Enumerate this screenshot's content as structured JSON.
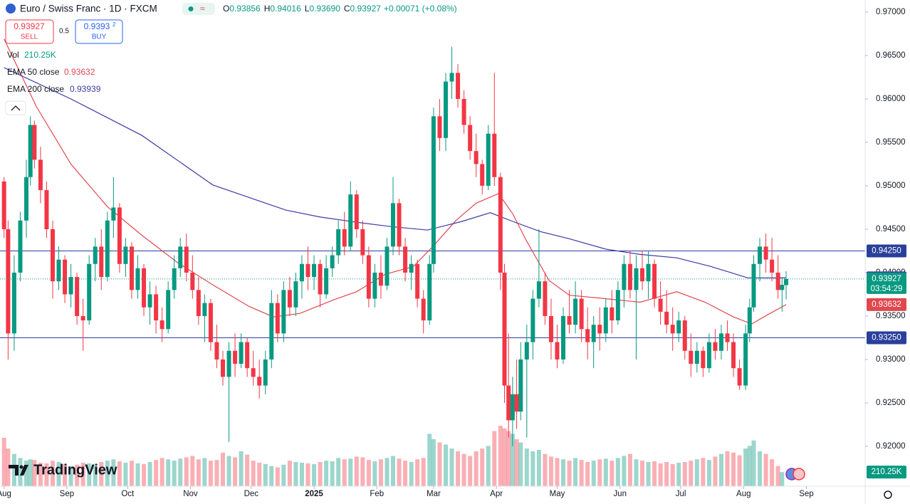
{
  "header": {
    "symbol": "Euro / Swiss Franc · 1D · FXCM",
    "badge": "≈",
    "ohlc": [
      {
        "label": "O",
        "value": "0.93856"
      },
      {
        "label": "H",
        "value": "0.94016"
      },
      {
        "label": "L",
        "value": "0.93690"
      },
      {
        "label": "C",
        "value": "0.93927"
      }
    ],
    "change": "+0.00071 (+0.08%)",
    "sell": {
      "price": "0.93927",
      "label": "SELL"
    },
    "spread": "0.5",
    "buy": {
      "price": "0.9393",
      "sup": "2",
      "label": "BUY"
    }
  },
  "watermark": "TradingView",
  "chart_data": {
    "type": "candlestick",
    "up_color": "#089981",
    "down_color": "#f23645",
    "countdown": "03:54:29",
    "xlim": [
      -2,
      425
    ],
    "ylim": [
      0.91541,
      0.97139
    ],
    "xticks": [
      {
        "value": 0,
        "label": "Aug"
      },
      {
        "value": 31,
        "label": "Sep"
      },
      {
        "value": 61,
        "label": "Oct"
      },
      {
        "value": 92,
        "label": "Nov"
      },
      {
        "value": 122,
        "label": "Dec"
      },
      {
        "value": 153,
        "label": "2025"
      },
      {
        "value": 184,
        "label": "Feb"
      },
      {
        "value": 212,
        "label": "Mar"
      },
      {
        "value": 243,
        "label": "Apr"
      },
      {
        "value": 273,
        "label": "May"
      },
      {
        "value": 304,
        "label": "Jun"
      },
      {
        "value": 334,
        "label": "Jul"
      },
      {
        "value": 365,
        "label": "Aug"
      },
      {
        "value": 396,
        "label": "Sep"
      }
    ],
    "yticks": [
      {
        "value": 0.92,
        "label": "0.92000"
      },
      {
        "value": 0.925,
        "label": "0.92500"
      },
      {
        "value": 0.93,
        "label": "0.93000"
      },
      {
        "value": 0.935,
        "label": "0.93500"
      },
      {
        "value": 0.94,
        "label": "0.94000"
      },
      {
        "value": 0.945,
        "label": "0.94500"
      },
      {
        "value": 0.95,
        "label": "0.95000"
      },
      {
        "value": 0.955,
        "label": "0.95500"
      },
      {
        "value": 0.96,
        "label": "0.96000"
      },
      {
        "value": 0.965,
        "label": "0.96500"
      },
      {
        "value": 0.97,
        "label": "0.97000"
      }
    ],
    "hlines": [
      {
        "value": 0.9425,
        "label": "0.94250",
        "color": "#2a3f9c"
      },
      {
        "value": 0.9325,
        "label": "0.93250",
        "color": "#2a3f9c"
      }
    ],
    "x": [
      0,
      2,
      5,
      8,
      11,
      13,
      15,
      18,
      21,
      24,
      27,
      30,
      33,
      36,
      39,
      42,
      45,
      48,
      51,
      54,
      57,
      60,
      63,
      66,
      69,
      72,
      75,
      78,
      81,
      84,
      87,
      90,
      93,
      96,
      99,
      102,
      105,
      108,
      111,
      114,
      117,
      120,
      123,
      126,
      129,
      132,
      135,
      138,
      141,
      144,
      147,
      150,
      153,
      156,
      159,
      162,
      165,
      168,
      171,
      174,
      177,
      180,
      183,
      186,
      189,
      192,
      195,
      198,
      201,
      204,
      207,
      210,
      212,
      215,
      218,
      221,
      224,
      227,
      230,
      233,
      236,
      239,
      242,
      245,
      247,
      249,
      251,
      253,
      255,
      258,
      261,
      264,
      267,
      270,
      273,
      276,
      279,
      282,
      285,
      288,
      291,
      294,
      297,
      300,
      303,
      306,
      309,
      312,
      315,
      318,
      321,
      324,
      327,
      330,
      333,
      336,
      339,
      342,
      345,
      348,
      351,
      354,
      357,
      360,
      363,
      366,
      368,
      370,
      373,
      376,
      379,
      382,
      384,
      386
    ],
    "open": [
      0.9505,
      0.945,
      0.933,
      0.94,
      0.946,
      0.951,
      0.957,
      0.953,
      0.9495,
      0.945,
      0.939,
      0.9415,
      0.9375,
      0.9395,
      0.935,
      0.9345,
      0.941,
      0.943,
      0.9395,
      0.946,
      0.9475,
      0.941,
      0.943,
      0.938,
      0.9405,
      0.936,
      0.9375,
      0.9345,
      0.9335,
      0.938,
      0.9405,
      0.943,
      0.94,
      0.938,
      0.935,
      0.9365,
      0.932,
      0.93,
      0.928,
      0.931,
      0.9295,
      0.932,
      0.929,
      0.928,
      0.927,
      0.93,
      0.9365,
      0.933,
      0.938,
      0.936,
      0.939,
      0.941,
      0.9395,
      0.941,
      0.9375,
      0.9405,
      0.942,
      0.945,
      0.943,
      0.949,
      0.945,
      0.942,
      0.937,
      0.94,
      0.9385,
      0.943,
      0.948,
      0.943,
      0.94,
      0.941,
      0.937,
      0.9345,
      0.941,
      0.958,
      0.9555,
      0.962,
      0.963,
      0.96,
      0.957,
      0.954,
      0.9525,
      0.95,
      0.956,
      0.951,
      0.94,
      0.927,
      0.923,
      0.926,
      0.924,
      0.93,
      0.932,
      0.937,
      0.939,
      0.935,
      0.932,
      0.93,
      0.935,
      0.934,
      0.937,
      0.9335,
      0.932,
      0.934,
      0.933,
      0.936,
      0.9345,
      0.938,
      0.941,
      0.938,
      0.9405,
      0.939,
      0.941,
      0.937,
      0.9355,
      0.934,
      0.933,
      0.9345,
      0.931,
      0.9295,
      0.931,
      0.929,
      0.932,
      0.931,
      0.933,
      0.932,
      0.929,
      0.927,
      0.933,
      0.936,
      0.941,
      0.943,
      0.9415,
      0.94,
      0.938,
      0.93856
    ],
    "high": [
      0.951,
      0.946,
      0.942,
      0.947,
      0.953,
      0.958,
      0.9575,
      0.9545,
      0.9505,
      0.946,
      0.943,
      0.942,
      0.941,
      0.94,
      0.937,
      0.942,
      0.944,
      0.945,
      0.947,
      0.951,
      0.948,
      0.944,
      0.9435,
      0.942,
      0.941,
      0.939,
      0.9385,
      0.936,
      0.939,
      0.942,
      0.944,
      0.9445,
      0.942,
      0.9395,
      0.9375,
      0.937,
      0.934,
      0.931,
      0.932,
      0.933,
      0.933,
      0.9325,
      0.931,
      0.93,
      0.931,
      0.938,
      0.9375,
      0.939,
      0.9395,
      0.94,
      0.942,
      0.943,
      0.942,
      0.9415,
      0.942,
      0.943,
      0.946,
      0.947,
      0.9505,
      0.9495,
      0.946,
      0.943,
      0.941,
      0.942,
      0.944,
      0.951,
      0.9485,
      0.944,
      0.942,
      0.9415,
      0.938,
      0.942,
      0.959,
      0.96,
      0.963,
      0.966,
      0.964,
      0.961,
      0.958,
      0.956,
      0.953,
      0.957,
      0.963,
      0.9515,
      0.941,
      0.933,
      0.928,
      0.93,
      0.932,
      0.934,
      0.938,
      0.945,
      0.94,
      0.937,
      0.934,
      0.936,
      0.938,
      0.939,
      0.938,
      0.936,
      0.935,
      0.936,
      0.937,
      0.938,
      0.939,
      0.942,
      0.9425,
      0.942,
      0.9425,
      0.9425,
      0.9415,
      0.939,
      0.938,
      0.936,
      0.9355,
      0.935,
      0.933,
      0.932,
      0.9315,
      0.933,
      0.9335,
      0.934,
      0.9345,
      0.933,
      0.93,
      0.934,
      0.937,
      0.942,
      0.944,
      0.9445,
      0.944,
      0.942,
      0.9395,
      0.94016
    ],
    "low": [
      0.944,
      0.93,
      0.931,
      0.939,
      0.944,
      0.95,
      0.952,
      0.948,
      0.944,
      0.937,
      0.938,
      0.9365,
      0.936,
      0.934,
      0.931,
      0.934,
      0.939,
      0.938,
      0.939,
      0.944,
      0.94,
      0.9395,
      0.937,
      0.937,
      0.935,
      0.934,
      0.933,
      0.932,
      0.933,
      0.937,
      0.9395,
      0.939,
      0.937,
      0.934,
      0.932,
      0.931,
      0.929,
      0.927,
      0.9205,
      0.928,
      0.929,
      0.928,
      0.927,
      0.9255,
      0.926,
      0.929,
      0.932,
      0.932,
      0.935,
      0.935,
      0.937,
      0.938,
      0.938,
      0.936,
      0.937,
      0.9395,
      0.941,
      0.942,
      0.9425,
      0.944,
      0.941,
      0.936,
      0.936,
      0.937,
      0.938,
      0.942,
      0.942,
      0.939,
      0.938,
      0.936,
      0.933,
      0.934,
      0.94,
      0.954,
      0.954,
      0.96,
      0.959,
      0.956,
      0.953,
      0.951,
      0.949,
      0.9495,
      0.95,
      0.938,
      0.925,
      0.921,
      0.92,
      0.922,
      0.923,
      0.921,
      0.93,
      0.936,
      0.934,
      0.93,
      0.929,
      0.9295,
      0.933,
      0.933,
      0.932,
      0.93,
      0.929,
      0.931,
      0.932,
      0.933,
      0.934,
      0.936,
      0.937,
      0.93,
      0.938,
      0.937,
      0.936,
      0.934,
      0.933,
      0.931,
      0.932,
      0.93,
      0.928,
      0.9285,
      0.928,
      0.9285,
      0.93,
      0.93,
      0.931,
      0.928,
      0.9265,
      0.9265,
      0.932,
      0.9355,
      0.939,
      0.94,
      0.939,
      0.937,
      0.9355,
      0.9369
    ],
    "close": [
      0.945,
      0.933,
      0.94,
      0.946,
      0.951,
      0.957,
      0.953,
      0.9495,
      0.945,
      0.939,
      0.9415,
      0.9375,
      0.9395,
      0.935,
      0.9345,
      0.941,
      0.943,
      0.9395,
      0.946,
      0.9475,
      0.941,
      0.943,
      0.938,
      0.9405,
      0.936,
      0.9375,
      0.9345,
      0.9335,
      0.938,
      0.9405,
      0.943,
      0.94,
      0.938,
      0.935,
      0.9365,
      0.932,
      0.93,
      0.928,
      0.931,
      0.9295,
      0.932,
      0.929,
      0.928,
      0.927,
      0.93,
      0.9365,
      0.933,
      0.938,
      0.936,
      0.939,
      0.941,
      0.9395,
      0.941,
      0.9375,
      0.9405,
      0.942,
      0.945,
      0.943,
      0.949,
      0.945,
      0.942,
      0.937,
      0.94,
      0.9385,
      0.943,
      0.948,
      0.943,
      0.94,
      0.941,
      0.937,
      0.9345,
      0.941,
      0.958,
      0.9555,
      0.962,
      0.963,
      0.96,
      0.957,
      0.954,
      0.9525,
      0.95,
      0.956,
      0.951,
      0.94,
      0.927,
      0.923,
      0.926,
      0.924,
      0.93,
      0.932,
      0.937,
      0.939,
      0.935,
      0.932,
      0.93,
      0.935,
      0.934,
      0.937,
      0.9335,
      0.932,
      0.934,
      0.933,
      0.936,
      0.9345,
      0.938,
      0.941,
      0.938,
      0.9405,
      0.939,
      0.941,
      0.937,
      0.9355,
      0.934,
      0.933,
      0.9345,
      0.931,
      0.9295,
      0.931,
      0.929,
      0.932,
      0.931,
      0.933,
      0.932,
      0.929,
      0.927,
      0.933,
      0.936,
      0.941,
      0.943,
      0.9415,
      0.94,
      0.938,
      0.9386,
      0.93927
    ],
    "volume": {
      "name": "Vol",
      "last_label": "210.25K",
      "values": [
        720,
        560,
        480,
        420,
        380,
        400,
        390,
        350,
        340,
        380,
        360,
        330,
        300,
        320,
        350,
        340,
        310,
        360,
        380,
        400,
        370,
        350,
        380,
        340,
        330,
        360,
        390,
        420,
        400,
        380,
        410,
        430,
        450,
        400,
        420,
        380,
        390,
        500,
        450,
        430,
        520,
        470,
        380,
        350,
        330,
        300,
        280,
        320,
        380,
        360,
        350,
        340,
        330,
        360,
        380,
        370,
        420,
        400,
        410,
        440,
        430,
        390,
        370,
        400,
        420,
        450,
        410,
        380,
        360,
        400,
        420,
        780,
        700,
        650,
        620,
        560,
        520,
        480,
        450,
        520,
        560,
        600,
        820,
        900,
        860,
        820,
        780,
        700,
        650,
        560,
        520,
        540,
        480,
        440,
        420,
        400,
        380,
        420,
        390,
        360,
        380,
        400,
        410,
        380,
        420,
        450,
        480,
        400,
        380,
        360,
        370,
        340,
        360,
        330,
        350,
        360,
        380,
        400,
        420,
        390,
        440,
        480,
        520,
        500,
        460,
        560,
        600,
        680,
        520,
        480,
        400,
        300,
        210.25
      ]
    },
    "overlays": [
      {
        "name": "EMA 50 close",
        "color": "#e0484f",
        "x": [
          0,
          16,
          33,
          51,
          68,
          86,
          103,
          121,
          133,
          146,
          163,
          174,
          188,
          202,
          212,
          223,
          233,
          244,
          251,
          258,
          269,
          279,
          297,
          314,
          332,
          346,
          360,
          369,
          378,
          386
        ],
        "values": [
          0.9669,
          0.9591,
          0.9525,
          0.9476,
          0.9443,
          0.9411,
          0.9386,
          0.9361,
          0.9349,
          0.9353,
          0.9369,
          0.9378,
          0.9398,
          0.9407,
          0.9431,
          0.946,
          0.948,
          0.9491,
          0.9468,
          0.9436,
          0.9391,
          0.9374,
          0.937,
          0.9366,
          0.9378,
          0.9366,
          0.9349,
          0.9341,
          0.9353,
          0.93632
        ]
      },
      {
        "name": "EMA 200 close",
        "color": "#3b3ba6",
        "x": [
          0,
          33,
          68,
          103,
          139,
          156,
          174,
          191,
          209,
          226,
          240,
          251,
          265,
          279,
          297,
          314,
          332,
          349,
          367,
          386
        ],
        "values": [
          0.9636,
          0.96,
          0.9558,
          0.9501,
          0.9472,
          0.9464,
          0.9458,
          0.9453,
          0.9449,
          0.9459,
          0.9469,
          0.9459,
          0.9447,
          0.9439,
          0.9427,
          0.9421,
          0.9417,
          0.9407,
          0.9394,
          0.93939
        ]
      }
    ]
  }
}
